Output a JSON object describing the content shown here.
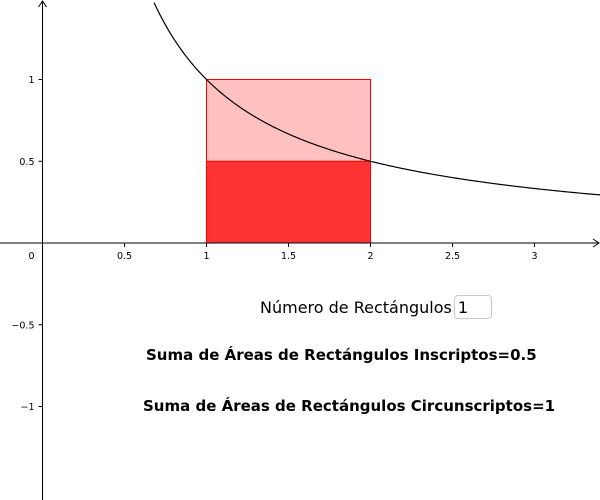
{
  "colors": {
    "inscribed_fill": "#ff3333",
    "circumscribed_fill": "#ffc0c0",
    "rect_stroke": "#ff0000",
    "axis": "#000000",
    "curve": "#000000"
  },
  "chart_data": {
    "type": "function-plot",
    "function": "1/x",
    "grid": false,
    "xlim": [
      -0.22,
      3.4
    ],
    "ylim": [
      -1.55,
      1.47
    ],
    "x_ticks": [
      {
        "value": 0.5,
        "label": "0.5"
      },
      {
        "value": 1,
        "label": "1"
      },
      {
        "value": 1.5,
        "label": "1.5"
      },
      {
        "value": 2,
        "label": "2"
      },
      {
        "value": 2.5,
        "label": "2.5"
      },
      {
        "value": 3,
        "label": "3"
      }
    ],
    "y_ticks": [
      {
        "value": 1,
        "label": "1"
      },
      {
        "value": 0.5,
        "label": "0.5"
      },
      {
        "value": -0.5,
        "label": "−0.5"
      },
      {
        "value": -1,
        "label": "−1"
      }
    ],
    "origin_label": "0",
    "interval": [
      1,
      2
    ],
    "circumscribed_rectangles": [
      {
        "x0": 1,
        "x1": 2,
        "height": 1
      }
    ],
    "inscribed_rectangles": [
      {
        "x0": 1,
        "x1": 2,
        "height": 0.5
      }
    ]
  },
  "controls": {
    "rect_count_label": "Número de Rectángulos",
    "rect_count_value": "1"
  },
  "results": {
    "inscribed": "Suma de Áreas de Rectángulos Inscriptos=0.5",
    "circumscribed": "Suma de Áreas de Rectángulos Circunscriptos=1"
  }
}
